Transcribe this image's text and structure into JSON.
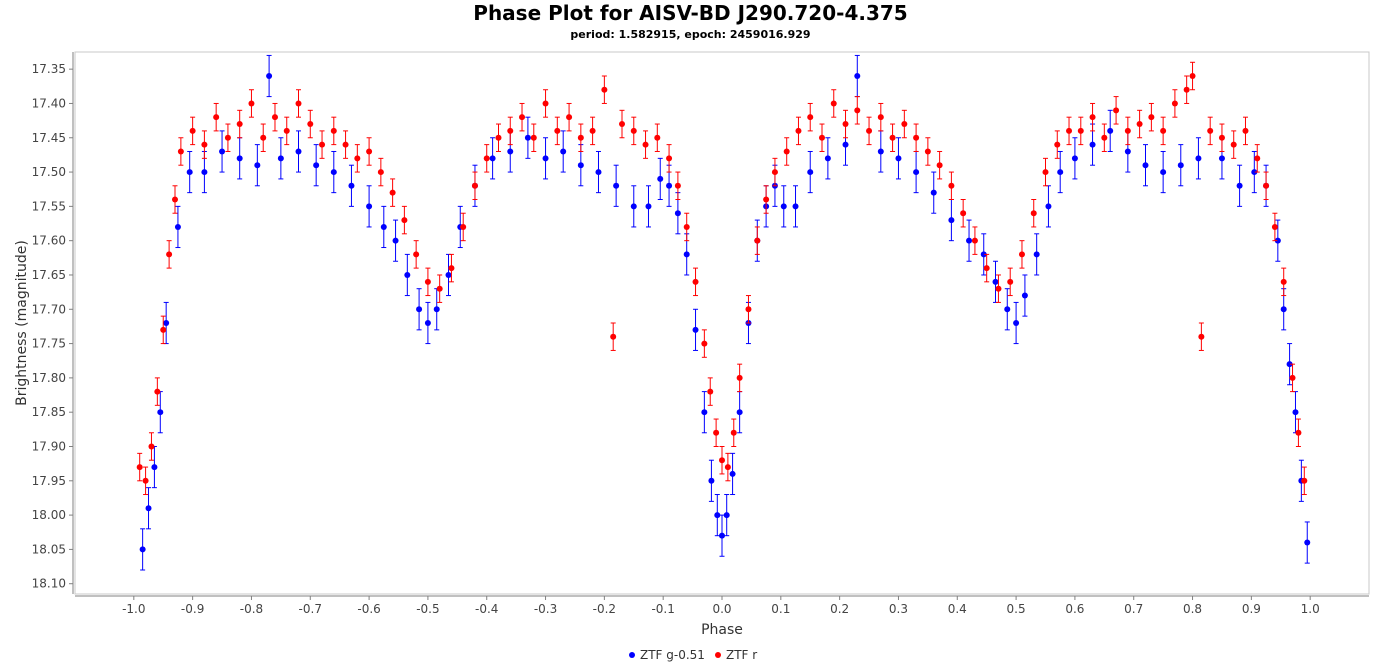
{
  "chart_data": {
    "type": "scatter",
    "title": "Phase Plot for AISV-BD J290.720-4.375",
    "subtitle": "period: 1.582915, epoch: 2459016.929",
    "xlabel": "Phase",
    "ylabel": "Brightness (magnitude)",
    "xlim": [
      -1.1,
      1.1
    ],
    "ylim": [
      18.115,
      17.325
    ],
    "y_inverted": true,
    "grid": false,
    "legend_position": "bottom-center",
    "x_ticks": [
      -1.0,
      -0.9,
      -0.8,
      -0.7,
      -0.6,
      -0.5,
      -0.4,
      -0.3,
      -0.2,
      -0.1,
      0.0,
      0.1,
      0.2,
      0.3,
      0.4,
      0.5,
      0.6,
      0.7,
      0.8,
      0.9,
      1.0
    ],
    "x_tick_labels": [
      "-1.0",
      "-0.9",
      "-0.8",
      "-0.7",
      "-0.6",
      "-0.5",
      "-0.4",
      "-0.3",
      "-0.2",
      "-0.1",
      "0.0",
      "0.1",
      "0.2",
      "0.3",
      "0.4",
      "0.5",
      "0.6",
      "0.7",
      "0.8",
      "0.9",
      "1.0"
    ],
    "y_ticks": [
      17.35,
      17.4,
      17.45,
      17.5,
      17.55,
      17.6,
      17.65,
      17.7,
      17.75,
      17.8,
      17.85,
      17.9,
      17.95,
      18.0,
      18.05,
      18.1
    ],
    "y_tick_labels": [
      "17.35",
      "17.40",
      "17.45",
      "17.50",
      "17.55",
      "17.60",
      "17.65",
      "17.70",
      "17.75",
      "17.80",
      "17.85",
      "17.90",
      "17.95",
      "18.00",
      "18.05",
      "18.10"
    ],
    "series": [
      {
        "name": "ZTF g-0.51",
        "color": "#0000ff",
        "error_bar": 0.03,
        "x": [
          -0.985,
          -0.975,
          -0.965,
          -0.955,
          -0.945,
          -0.925,
          -0.905,
          -0.88,
          -0.85,
          -0.82,
          -0.79,
          -0.77,
          -0.75,
          -0.72,
          -0.69,
          -0.66,
          -0.63,
          -0.6,
          -0.575,
          -0.555,
          -0.535,
          -0.515,
          -0.5,
          -0.485,
          -0.465,
          -0.445,
          -0.42,
          -0.39,
          -0.36,
          -0.33,
          -0.3,
          -0.27,
          -0.24,
          -0.21,
          -0.18,
          -0.15,
          -0.125,
          -0.105,
          -0.09,
          -0.075,
          -0.06,
          -0.045,
          -0.03,
          -0.018,
          -0.008,
          0.0,
          0.008,
          0.018,
          0.03,
          0.045,
          0.06,
          0.075,
          0.09,
          0.105,
          0.125,
          0.15,
          0.18,
          0.21,
          0.23,
          0.27,
          0.3,
          0.33,
          0.36,
          0.39,
          0.42,
          0.445,
          0.465,
          0.485,
          0.5,
          0.515,
          0.535,
          0.555,
          0.575,
          0.6,
          0.63,
          0.66,
          0.69,
          0.72,
          0.75,
          0.78,
          0.81,
          0.85,
          0.88,
          0.905,
          0.925,
          0.945,
          0.955,
          0.965,
          0.975,
          0.985,
          0.995
        ],
        "y": [
          18.05,
          17.99,
          17.93,
          17.85,
          17.72,
          17.58,
          17.5,
          17.5,
          17.47,
          17.48,
          17.49,
          17.36,
          17.48,
          17.47,
          17.49,
          17.5,
          17.52,
          17.55,
          17.58,
          17.6,
          17.65,
          17.7,
          17.72,
          17.7,
          17.65,
          17.58,
          17.52,
          17.48,
          17.47,
          17.45,
          17.48,
          17.47,
          17.49,
          17.5,
          17.52,
          17.55,
          17.55,
          17.51,
          17.52,
          17.56,
          17.62,
          17.73,
          17.85,
          17.95,
          18.0,
          18.03,
          18.0,
          17.94,
          17.85,
          17.72,
          17.6,
          17.55,
          17.52,
          17.55,
          17.55,
          17.5,
          17.48,
          17.46,
          17.36,
          17.47,
          17.48,
          17.5,
          17.53,
          17.57,
          17.6,
          17.62,
          17.66,
          17.7,
          17.72,
          17.68,
          17.62,
          17.55,
          17.5,
          17.48,
          17.46,
          17.44,
          17.47,
          17.49,
          17.5,
          17.49,
          17.48,
          17.48,
          17.52,
          17.5,
          17.52,
          17.6,
          17.7,
          17.78,
          17.85,
          17.95,
          18.04
        ]
      },
      {
        "name": "ZTF r",
        "color": "#ff0000",
        "error_bar": 0.02,
        "x": [
          -0.99,
          -0.98,
          -0.97,
          -0.96,
          -0.95,
          -0.94,
          -0.93,
          -0.92,
          -0.9,
          -0.88,
          -0.86,
          -0.84,
          -0.82,
          -0.8,
          -0.78,
          -0.76,
          -0.74,
          -0.72,
          -0.7,
          -0.68,
          -0.66,
          -0.64,
          -0.62,
          -0.6,
          -0.58,
          -0.56,
          -0.54,
          -0.52,
          -0.5,
          -0.48,
          -0.46,
          -0.44,
          -0.42,
          -0.4,
          -0.38,
          -0.36,
          -0.34,
          -0.32,
          -0.3,
          -0.28,
          -0.26,
          -0.24,
          -0.22,
          -0.2,
          -0.185,
          -0.17,
          -0.15,
          -0.13,
          -0.11,
          -0.09,
          -0.075,
          -0.06,
          -0.045,
          -0.03,
          -0.02,
          -0.01,
          0.0,
          0.01,
          0.02,
          0.03,
          0.045,
          0.06,
          0.075,
          0.09,
          0.11,
          0.13,
          0.15,
          0.17,
          0.19,
          0.21,
          0.23,
          0.25,
          0.27,
          0.29,
          0.31,
          0.33,
          0.35,
          0.37,
          0.39,
          0.41,
          0.43,
          0.45,
          0.47,
          0.49,
          0.51,
          0.53,
          0.55,
          0.57,
          0.59,
          0.61,
          0.63,
          0.65,
          0.67,
          0.69,
          0.71,
          0.73,
          0.75,
          0.77,
          0.79,
          0.8,
          0.815,
          0.83,
          0.85,
          0.87,
          0.89,
          0.91,
          0.925,
          0.94,
          0.955,
          0.97,
          0.98,
          0.99
        ],
        "y": [
          17.93,
          17.95,
          17.9,
          17.82,
          17.73,
          17.62,
          17.54,
          17.47,
          17.44,
          17.46,
          17.42,
          17.45,
          17.43,
          17.4,
          17.45,
          17.42,
          17.44,
          17.4,
          17.43,
          17.46,
          17.44,
          17.46,
          17.48,
          17.47,
          17.5,
          17.53,
          17.57,
          17.62,
          17.66,
          17.67,
          17.64,
          17.58,
          17.52,
          17.48,
          17.45,
          17.44,
          17.42,
          17.45,
          17.4,
          17.44,
          17.42,
          17.45,
          17.44,
          17.38,
          17.74,
          17.43,
          17.44,
          17.46,
          17.45,
          17.48,
          17.52,
          17.58,
          17.66,
          17.75,
          17.82,
          17.88,
          17.92,
          17.93,
          17.88,
          17.8,
          17.7,
          17.6,
          17.54,
          17.5,
          17.47,
          17.44,
          17.42,
          17.45,
          17.4,
          17.43,
          17.41,
          17.44,
          17.42,
          17.45,
          17.43,
          17.45,
          17.47,
          17.49,
          17.52,
          17.56,
          17.6,
          17.64,
          17.67,
          17.66,
          17.62,
          17.56,
          17.5,
          17.46,
          17.44,
          17.44,
          17.42,
          17.45,
          17.41,
          17.44,
          17.43,
          17.42,
          17.44,
          17.4,
          17.38,
          17.36,
          17.74,
          17.44,
          17.45,
          17.46,
          17.44,
          17.48,
          17.52,
          17.58,
          17.66,
          17.8,
          17.88,
          17.95
        ]
      }
    ]
  }
}
